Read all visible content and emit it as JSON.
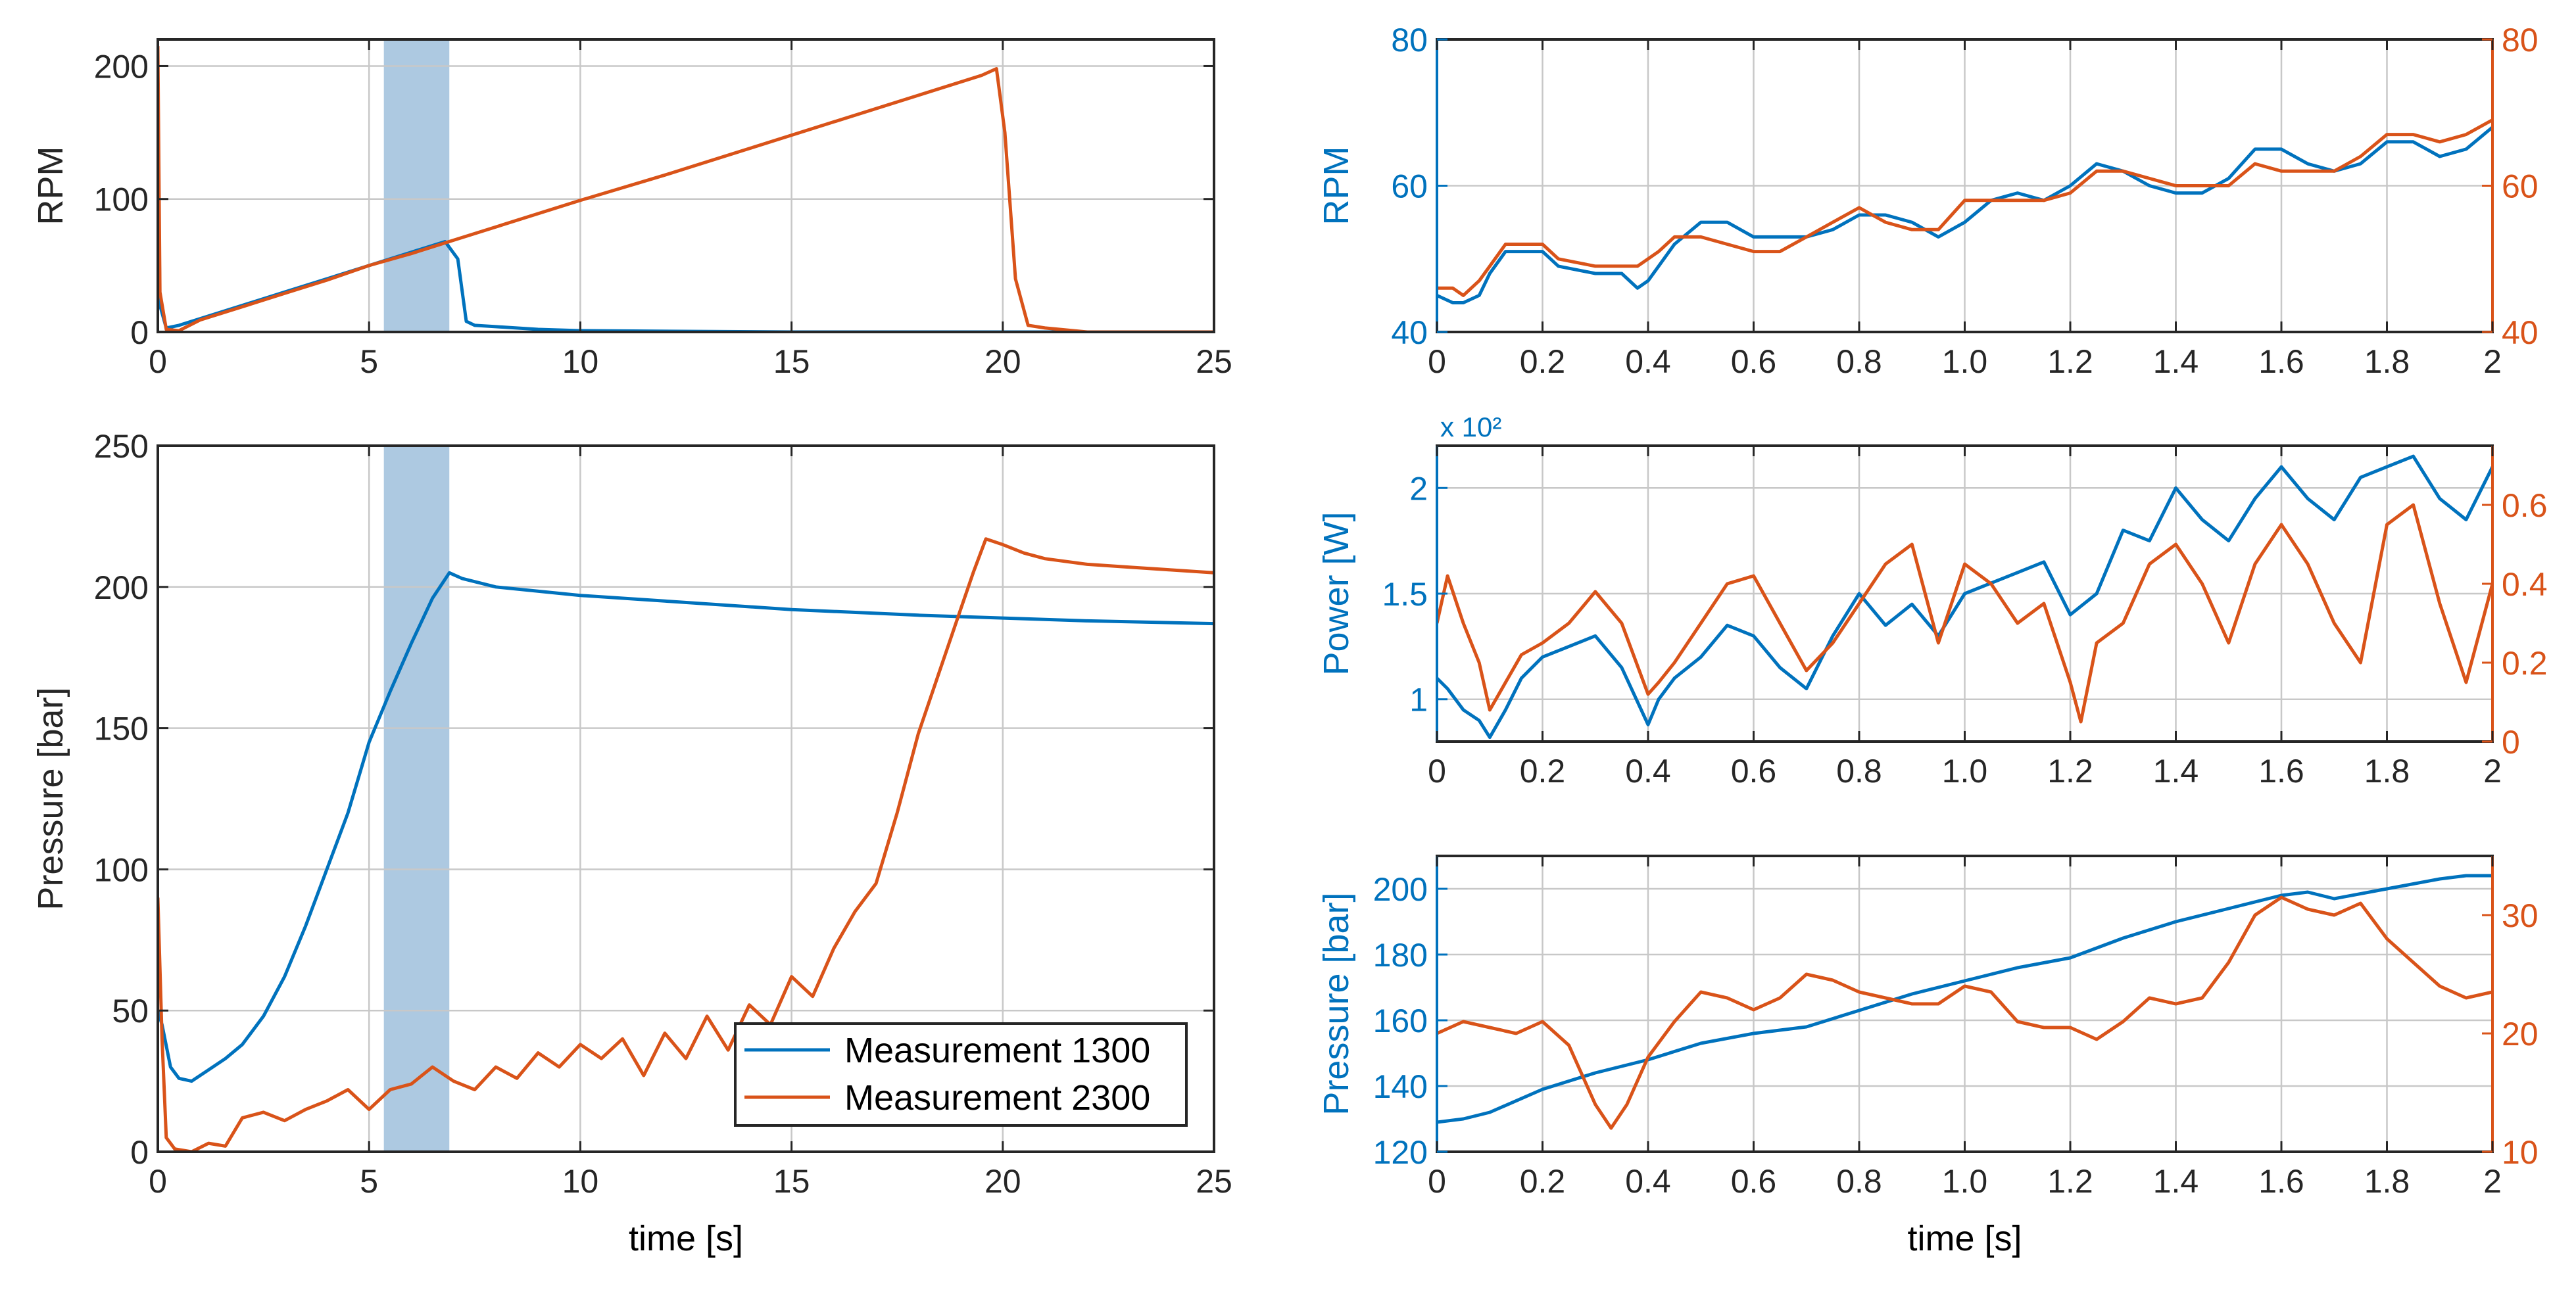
{
  "colors": {
    "blue": "#0072BD",
    "orange": "#D95319",
    "grid": "#c8c8c8",
    "highlight": "#9fbfdc",
    "axis": "#262626"
  },
  "legend": {
    "entries": [
      "Measurement 1300",
      "Measurement 2300"
    ],
    "location": "bottom-right of pressure plot"
  },
  "chart_data": [
    {
      "id": "rpm_full",
      "type": "line",
      "title": "",
      "xlabel": "",
      "ylabel": "RPM",
      "xlim": [
        0,
        25
      ],
      "ylim": [
        0,
        220
      ],
      "xticks": [
        0,
        5,
        10,
        15,
        20,
        25
      ],
      "yticks": [
        0,
        100,
        200
      ],
      "xticklabels": [
        "0",
        "5",
        "10",
        "15",
        "20",
        "25"
      ],
      "yticklabels": [
        "0",
        "100",
        "200"
      ],
      "highlight_x": [
        5.35,
        6.9
      ],
      "series": [
        {
          "name": "Measurement 1300",
          "color": "blue",
          "x": [
            0,
            0.05,
            0.2,
            0.5,
            1,
            2,
            3,
            4,
            5,
            6,
            6.8,
            7.1,
            7.3,
            7.5,
            8,
            9,
            10,
            15,
            20,
            25
          ],
          "y": [
            160,
            20,
            3,
            5,
            10,
            20,
            30,
            40,
            50,
            60,
            68,
            55,
            8,
            5,
            4,
            2,
            1,
            0,
            0,
            0
          ]
        },
        {
          "name": "Measurement 2300",
          "color": "orange",
          "x": [
            0,
            0.05,
            0.2,
            0.5,
            1,
            2,
            3,
            4,
            5,
            6,
            7,
            8,
            10,
            12,
            14,
            16,
            18,
            19.5,
            19.85,
            20.05,
            20.3,
            20.6,
            21,
            22,
            25
          ],
          "y": [
            215,
            30,
            2,
            1,
            9,
            19,
            29,
            39,
            50,
            59,
            69,
            79,
            99,
            118,
            138,
            158,
            178,
            193,
            198,
            150,
            40,
            5,
            3,
            0,
            0
          ]
        }
      ]
    },
    {
      "id": "pressure_full",
      "type": "line",
      "title": "",
      "xlabel": "time [s]",
      "ylabel": "Pressure [bar]",
      "xlim": [
        0,
        25
      ],
      "ylim": [
        0,
        250
      ],
      "xticks": [
        0,
        5,
        10,
        15,
        20,
        25
      ],
      "yticks": [
        0,
        50,
        100,
        150,
        200,
        250
      ],
      "xticklabels": [
        "0",
        "5",
        "10",
        "15",
        "20",
        "25"
      ],
      "yticklabels": [
        "0",
        "50",
        "100",
        "150",
        "200",
        "250"
      ],
      "highlight_x": [
        5.35,
        6.9
      ],
      "series": [
        {
          "name": "Measurement 1300",
          "color": "blue",
          "x": [
            0,
            0.1,
            0.3,
            0.5,
            0.8,
            1.2,
            1.6,
            2,
            2.5,
            3,
            3.5,
            4,
            4.5,
            5,
            5.5,
            6,
            6.5,
            6.9,
            7.2,
            8,
            10,
            12,
            15,
            18,
            20,
            22,
            25
          ],
          "y": [
            50,
            45,
            30,
            26,
            25,
            29,
            33,
            38,
            48,
            62,
            80,
            100,
            120,
            145,
            163,
            180,
            196,
            205,
            203,
            200,
            197,
            195,
            192,
            190,
            189,
            188,
            187
          ]
        },
        {
          "name": "Measurement 2300",
          "color": "orange",
          "x": [
            0,
            0.1,
            0.2,
            0.4,
            0.8,
            1.2,
            1.6,
            2,
            2.5,
            3,
            3.5,
            4,
            4.5,
            5,
            5.5,
            6,
            6.5,
            7,
            7.5,
            8,
            8.5,
            9,
            9.5,
            10,
            10.5,
            11,
            11.5,
            12,
            12.5,
            13,
            13.5,
            14,
            14.5,
            15,
            15.5,
            16,
            16.5,
            17,
            17.5,
            18,
            18.5,
            19,
            19.3,
            19.6,
            20,
            20.5,
            21,
            22,
            23,
            24,
            25
          ],
          "y": [
            90,
            40,
            5,
            1,
            0,
            3,
            2,
            12,
            14,
            11,
            15,
            18,
            22,
            15,
            22,
            24,
            30,
            25,
            22,
            30,
            26,
            35,
            30,
            38,
            33,
            40,
            27,
            42,
            33,
            48,
            36,
            52,
            45,
            62,
            55,
            72,
            85,
            95,
            120,
            148,
            170,
            192,
            205,
            217,
            215,
            212,
            210,
            208,
            207,
            206,
            205
          ]
        }
      ]
    },
    {
      "id": "rpm_zoom",
      "type": "line",
      "title": "",
      "xlabel": "",
      "ylabel": "RPM",
      "ylabel_right": "",
      "xlim": [
        0,
        2
      ],
      "ylim": [
        40,
        80
      ],
      "ylim_right": [
        40,
        80
      ],
      "xticks": [
        0,
        0.2,
        0.4,
        0.6,
        0.8,
        1.0,
        1.2,
        1.4,
        1.6,
        1.8,
        2
      ],
      "xticklabels": [
        "0",
        "0.2",
        "0.4",
        "0.6",
        "0.8",
        "1.0",
        "1.2",
        "1.4",
        "1.6",
        "1.8",
        "2"
      ],
      "yticks": [
        40,
        60,
        80
      ],
      "yticklabels": [
        "40",
        "60",
        "80"
      ],
      "yticks_right": [
        40,
        60,
        80
      ],
      "yticklabels_right": [
        "40",
        "60",
        "80"
      ],
      "series": [
        {
          "name": "Measurement 1300",
          "color": "blue",
          "axis": "left",
          "x": [
            0,
            0.03,
            0.05,
            0.08,
            0.1,
            0.13,
            0.2,
            0.23,
            0.3,
            0.35,
            0.38,
            0.4,
            0.42,
            0.45,
            0.5,
            0.55,
            0.6,
            0.65,
            0.7,
            0.75,
            0.8,
            0.85,
            0.9,
            0.95,
            1.0,
            1.05,
            1.1,
            1.15,
            1.2,
            1.25,
            1.3,
            1.35,
            1.4,
            1.45,
            1.5,
            1.55,
            1.6,
            1.65,
            1.7,
            1.75,
            1.8,
            1.85,
            1.9,
            1.95,
            2
          ],
          "y": [
            45,
            44,
            44,
            45,
            48,
            51,
            51,
            49,
            48,
            48,
            46,
            47,
            49,
            52,
            55,
            55,
            53,
            53,
            53,
            54,
            56,
            56,
            55,
            53,
            55,
            58,
            59,
            58,
            60,
            63,
            62,
            60,
            59,
            59,
            61,
            65,
            65,
            63,
            62,
            63,
            66,
            66,
            64,
            65,
            68
          ]
        },
        {
          "name": "Measurement 2300",
          "color": "orange",
          "axis": "right",
          "x": [
            0,
            0.03,
            0.05,
            0.08,
            0.1,
            0.13,
            0.2,
            0.23,
            0.3,
            0.35,
            0.38,
            0.4,
            0.42,
            0.45,
            0.5,
            0.55,
            0.6,
            0.65,
            0.7,
            0.75,
            0.8,
            0.85,
            0.9,
            0.95,
            1.0,
            1.05,
            1.1,
            1.15,
            1.2,
            1.25,
            1.3,
            1.35,
            1.4,
            1.45,
            1.5,
            1.55,
            1.6,
            1.65,
            1.7,
            1.75,
            1.8,
            1.85,
            1.9,
            1.95,
            2
          ],
          "y": [
            46,
            46,
            45,
            47,
            49,
            52,
            52,
            50,
            49,
            49,
            49,
            50,
            51,
            53,
            53,
            52,
            51,
            51,
            53,
            55,
            57,
            55,
            54,
            54,
            58,
            58,
            58,
            58,
            59,
            62,
            62,
            61,
            60,
            60,
            60,
            63,
            62,
            62,
            62,
            64,
            67,
            67,
            66,
            67,
            69
          ]
        }
      ]
    },
    {
      "id": "power_zoom",
      "type": "line",
      "title": "",
      "xlabel": "",
      "ylabel": "Power [W]",
      "ylabel_right": "",
      "multiplier_label": "x 10²",
      "xlim": [
        0,
        2
      ],
      "ylim": [
        0.8,
        2.2
      ],
      "ylim_right": [
        0,
        0.75
      ],
      "xticks": [
        0,
        0.2,
        0.4,
        0.6,
        0.8,
        1.0,
        1.2,
        1.4,
        1.6,
        1.8,
        2
      ],
      "xticklabels": [
        "0",
        "0.2",
        "0.4",
        "0.6",
        "0.8",
        "1.0",
        "1.2",
        "1.4",
        "1.6",
        "1.8",
        "2"
      ],
      "yticks": [
        1,
        1.5,
        2
      ],
      "yticklabels": [
        "1",
        "1.5",
        "2"
      ],
      "yticks_right": [
        0,
        0.2,
        0.4,
        0.6
      ],
      "yticklabels_right": [
        "0",
        "0.2",
        "0.4",
        "0.6"
      ],
      "series": [
        {
          "name": "Measurement 1300",
          "color": "blue",
          "axis": "left",
          "x": [
            0,
            0.02,
            0.05,
            0.08,
            0.1,
            0.13,
            0.16,
            0.2,
            0.25,
            0.3,
            0.35,
            0.4,
            0.42,
            0.45,
            0.5,
            0.55,
            0.6,
            0.65,
            0.7,
            0.75,
            0.8,
            0.85,
            0.9,
            0.95,
            1.0,
            1.05,
            1.1,
            1.15,
            1.2,
            1.25,
            1.3,
            1.35,
            1.4,
            1.45,
            1.5,
            1.55,
            1.6,
            1.65,
            1.7,
            1.75,
            1.8,
            1.85,
            1.9,
            1.95,
            2
          ],
          "y": [
            1.1,
            1.05,
            0.95,
            0.9,
            0.82,
            0.95,
            1.1,
            1.2,
            1.25,
            1.3,
            1.15,
            0.88,
            1.0,
            1.1,
            1.2,
            1.35,
            1.3,
            1.15,
            1.05,
            1.3,
            1.5,
            1.35,
            1.45,
            1.3,
            1.5,
            1.55,
            1.6,
            1.65,
            1.4,
            1.5,
            1.8,
            1.75,
            2.0,
            1.85,
            1.75,
            1.95,
            2.1,
            1.95,
            1.85,
            2.05,
            2.1,
            2.15,
            1.95,
            1.85,
            2.1
          ]
        },
        {
          "name": "Measurement 2300",
          "color": "orange",
          "axis": "right",
          "x": [
            0,
            0.02,
            0.05,
            0.08,
            0.1,
            0.13,
            0.16,
            0.2,
            0.25,
            0.3,
            0.35,
            0.4,
            0.42,
            0.45,
            0.5,
            0.55,
            0.6,
            0.65,
            0.7,
            0.75,
            0.8,
            0.85,
            0.9,
            0.95,
            1.0,
            1.05,
            1.1,
            1.15,
            1.2,
            1.22,
            1.25,
            1.3,
            1.35,
            1.4,
            1.45,
            1.5,
            1.55,
            1.6,
            1.65,
            1.7,
            1.75,
            1.8,
            1.85,
            1.9,
            1.95,
            2
          ],
          "y": [
            0.3,
            0.42,
            0.3,
            0.2,
            0.08,
            0.15,
            0.22,
            0.25,
            0.3,
            0.38,
            0.3,
            0.12,
            0.15,
            0.2,
            0.3,
            0.4,
            0.42,
            0.3,
            0.18,
            0.25,
            0.35,
            0.45,
            0.5,
            0.25,
            0.45,
            0.4,
            0.3,
            0.35,
            0.15,
            0.05,
            0.25,
            0.3,
            0.45,
            0.5,
            0.4,
            0.25,
            0.45,
            0.55,
            0.45,
            0.3,
            0.2,
            0.55,
            0.6,
            0.35,
            0.15,
            0.4
          ]
        }
      ]
    },
    {
      "id": "pressure_zoom",
      "type": "line",
      "title": "",
      "xlabel": "time [s]",
      "ylabel": "Pressure [bar]",
      "ylabel_right": "",
      "xlim": [
        0,
        2
      ],
      "ylim": [
        120,
        210
      ],
      "ylim_right": [
        10,
        35
      ],
      "xticks": [
        0,
        0.2,
        0.4,
        0.6,
        0.8,
        1.0,
        1.2,
        1.4,
        1.6,
        1.8,
        2
      ],
      "xticklabels": [
        "0",
        "0.2",
        "0.4",
        "0.6",
        "0.8",
        "1.0",
        "1.2",
        "1.4",
        "1.6",
        "1.8",
        "2"
      ],
      "yticks": [
        120,
        140,
        160,
        180,
        200
      ],
      "yticklabels": [
        "120",
        "140",
        "160",
        "180",
        "200"
      ],
      "yticks_right": [
        10,
        20,
        30
      ],
      "yticklabels_right": [
        "10",
        "20",
        "30"
      ],
      "series": [
        {
          "name": "Measurement 1300",
          "color": "blue",
          "axis": "left",
          "x": [
            0,
            0.05,
            0.1,
            0.2,
            0.3,
            0.4,
            0.5,
            0.6,
            0.7,
            0.8,
            0.9,
            1.0,
            1.1,
            1.2,
            1.3,
            1.4,
            1.5,
            1.6,
            1.65,
            1.7,
            1.8,
            1.9,
            1.95,
            2
          ],
          "y": [
            129,
            130,
            132,
            139,
            144,
            148,
            153,
            156,
            158,
            163,
            168,
            172,
            176,
            179,
            185,
            190,
            194,
            198,
            199,
            197,
            200,
            203,
            204,
            204
          ]
        },
        {
          "name": "Measurement 2300",
          "color": "orange",
          "axis": "right",
          "x": [
            0,
            0.05,
            0.1,
            0.15,
            0.2,
            0.25,
            0.3,
            0.33,
            0.36,
            0.4,
            0.45,
            0.5,
            0.55,
            0.6,
            0.65,
            0.7,
            0.75,
            0.8,
            0.85,
            0.9,
            0.95,
            1.0,
            1.05,
            1.1,
            1.15,
            1.2,
            1.25,
            1.3,
            1.35,
            1.4,
            1.45,
            1.5,
            1.55,
            1.6,
            1.65,
            1.7,
            1.75,
            1.8,
            1.85,
            1.9,
            1.95,
            2
          ],
          "y": [
            20,
            21,
            20.5,
            20,
            21,
            19,
            14,
            12,
            14,
            18,
            21,
            23.5,
            23,
            22,
            23,
            25,
            24.5,
            23.5,
            23,
            22.5,
            22.5,
            24,
            23.5,
            21,
            20.5,
            20.5,
            19.5,
            21,
            23,
            22.5,
            23,
            26,
            30,
            31.5,
            30.5,
            30,
            31,
            28,
            26,
            24,
            23,
            23.5
          ]
        }
      ]
    }
  ]
}
